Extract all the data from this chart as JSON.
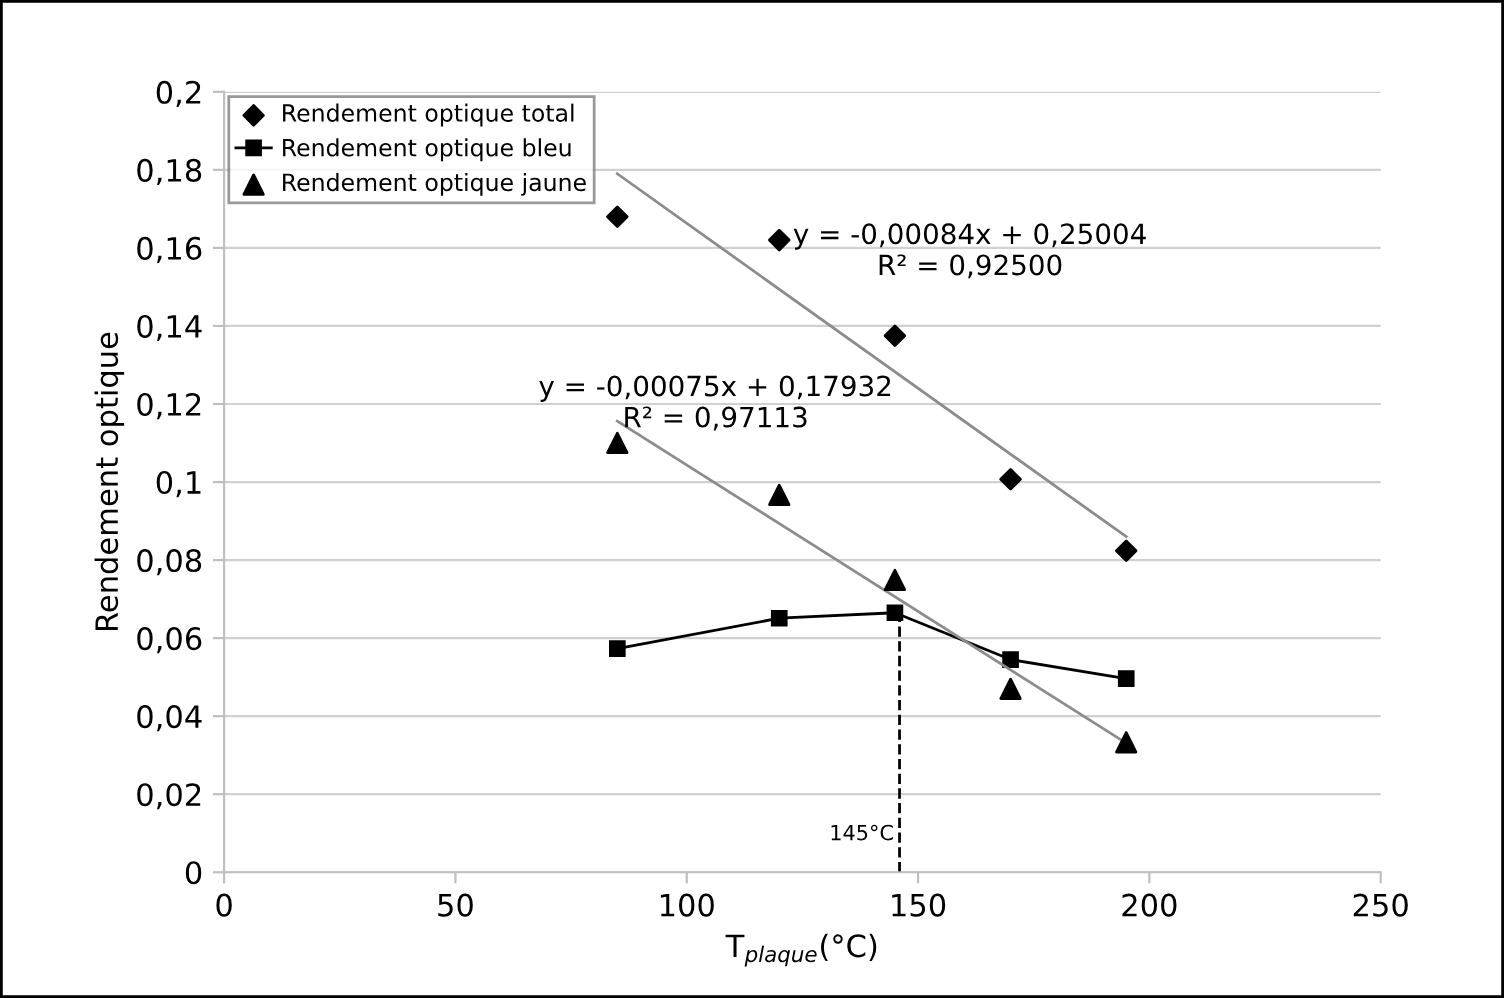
{
  "chart_data": {
    "type": "scatter",
    "xlabel": "T$_{plaque}$(°C)",
    "ylabel": "Rendement optique",
    "xlim": [
      0,
      250
    ],
    "xticks": [
      0,
      50,
      100,
      150,
      200,
      250
    ],
    "ylim": [
      0,
      0.2
    ],
    "yticks": [
      0,
      {
        "value": 0.02,
        "label": "0,02"
      },
      {
        "value": 0.04,
        "label": "0,04"
      },
      {
        "value": 0.06,
        "label": "0,06"
      },
      {
        "value": 0.08,
        "label": "0,08"
      },
      {
        "value": 0.1,
        "label": "0,1"
      },
      {
        "value": 0.12,
        "label": "0,12"
      },
      {
        "value": 0.14,
        "label": "0,14"
      },
      {
        "value": 0.16,
        "label": "0,16"
      },
      {
        "value": 0.18,
        "label": "0,18"
      },
      {
        "value": 0.2,
        "label": "0,2"
      }
    ],
    "grid": "y",
    "legend": "top left",
    "x": [
      85,
      120,
      145,
      170,
      195
    ],
    "series": [
      {
        "name": "Rendement optique total",
        "marker": "diamond",
        "color": "#000000",
        "values": [
          0.168,
          0.162,
          0.1375,
          0.1007,
          0.0824
        ]
      },
      {
        "name": "Rendement optique bleu",
        "type": "line",
        "marker": "square",
        "color": "#000000",
        "values": [
          0.0573,
          0.0651,
          0.0665,
          0.0545,
          0.0496
        ]
      },
      {
        "name": "Rendement optique jaune",
        "marker": "triangle",
        "color": "#000000",
        "values": [
          0.11,
          0.0967,
          0.0749,
          0.047,
          0.0333
        ]
      },
      {
        "type": "line",
        "x": [
          85,
          195
        ],
        "marker": "none",
        "color": "#8c8c8c",
        "values": [
          0.179,
          0.086
        ]
      },
      {
        "type": "line",
        "x": [
          85,
          195
        ],
        "marker": "none",
        "color": "#8c8c8c",
        "values": [
          0.1156,
          0.0331
        ]
      },
      {
        "type": "line",
        "x": [
          146,
          146
        ],
        "marker": "none",
        "line_style": "dashed",
        "color": "#000000",
        "values": [
          0,
          0.0665
        ]
      }
    ],
    "annotations": [
      "y = -0,00084x + 0,25004\nR² = 0,92500",
      "y = -0,00075x + 0,17932\nR² = 0,97113",
      {
        "text": "145°C",
        "x": 146,
        "y": 0
      }
    ]
  }
}
